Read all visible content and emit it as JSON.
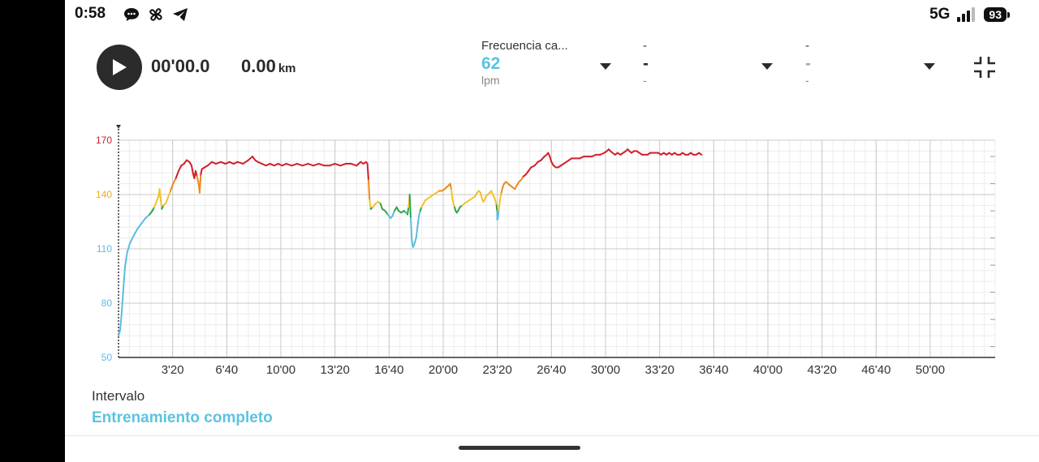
{
  "status_bar": {
    "time": "0:58",
    "network": "5G",
    "battery": "93"
  },
  "summary": {
    "duration": "00'00.0",
    "distance_value": "0.00",
    "distance_unit": "km"
  },
  "metrics": [
    {
      "label": "Frecuencia ca...",
      "value": "62",
      "unit": "lpm",
      "value_color": "#5bc3e0"
    },
    {
      "label": "-",
      "value": "-",
      "unit": "-",
      "value_color": "#2b2b2b"
    },
    {
      "label": "-",
      "value": "-",
      "unit": "-",
      "value_color": "#aaaaaa"
    }
  ],
  "interval": {
    "label": "Intervalo",
    "value": "Entrenamiento completo"
  },
  "colors": {
    "accent": "#5bc3e0",
    "zone_blue": "#5bbce0",
    "zone_green": "#2aa84a",
    "zone_yellow": "#f2c12e",
    "zone_orange": "#ec8a22",
    "zone_red": "#d0202a"
  },
  "chart_data": {
    "type": "line",
    "title": "Frecuencia cardíaca",
    "ylabel": "lpm",
    "xlabel": "",
    "ylim": [
      50,
      170
    ],
    "xlim_seconds": [
      0,
      3240
    ],
    "y_ticks": [
      {
        "value": 50,
        "label": "50",
        "color": "#5bbce0"
      },
      {
        "value": 80,
        "label": "80",
        "color": "#5bbce0"
      },
      {
        "value": 110,
        "label": "110",
        "color": "#5bbce0"
      },
      {
        "value": 140,
        "label": "140",
        "color": "#f2a81e"
      },
      {
        "value": 170,
        "label": "170",
        "color": "#d0202a"
      }
    ],
    "x_ticks": [
      {
        "seconds": 200,
        "label": "3'20"
      },
      {
        "seconds": 400,
        "label": "6'40"
      },
      {
        "seconds": 600,
        "label": "10'00"
      },
      {
        "seconds": 800,
        "label": "13'20"
      },
      {
        "seconds": 1000,
        "label": "16'40"
      },
      {
        "seconds": 1200,
        "label": "20'00"
      },
      {
        "seconds": 1400,
        "label": "23'20"
      },
      {
        "seconds": 1600,
        "label": "26'40"
      },
      {
        "seconds": 1800,
        "label": "30'00"
      },
      {
        "seconds": 2000,
        "label": "33'20"
      },
      {
        "seconds": 2200,
        "label": "36'40"
      },
      {
        "seconds": 2400,
        "label": "40'00"
      },
      {
        "seconds": 2600,
        "label": "43'20"
      },
      {
        "seconds": 2800,
        "label": "46'40"
      },
      {
        "seconds": 3000,
        "label": "50'00"
      }
    ],
    "zones": [
      {
        "min": 0,
        "max": 130,
        "color": "#5bbce0"
      },
      {
        "min": 130,
        "max": 134,
        "color": "#2aa84a"
      },
      {
        "min": 134,
        "max": 142,
        "color": "#f2c12e"
      },
      {
        "min": 142,
        "max": 150,
        "color": "#ec8a22"
      },
      {
        "min": 150,
        "max": 200,
        "color": "#d0202a"
      }
    ],
    "series": [
      {
        "name": "Frecuencia cardíaca",
        "points": [
          [
            0,
            62
          ],
          [
            6,
            65
          ],
          [
            12,
            75
          ],
          [
            18,
            88
          ],
          [
            24,
            100
          ],
          [
            32,
            108
          ],
          [
            42,
            113
          ],
          [
            55,
            117
          ],
          [
            70,
            121
          ],
          [
            85,
            124
          ],
          [
            100,
            127
          ],
          [
            115,
            129
          ],
          [
            125,
            131
          ],
          [
            132,
            133
          ],
          [
            140,
            136
          ],
          [
            148,
            139
          ],
          [
            152,
            143
          ],
          [
            156,
            137
          ],
          [
            160,
            132
          ],
          [
            166,
            134
          ],
          [
            174,
            135
          ],
          [
            182,
            138
          ],
          [
            192,
            142
          ],
          [
            202,
            146
          ],
          [
            212,
            149
          ],
          [
            222,
            153
          ],
          [
            232,
            156
          ],
          [
            242,
            157
          ],
          [
            252,
            159
          ],
          [
            262,
            158
          ],
          [
            270,
            156
          ],
          [
            275,
            152
          ],
          [
            280,
            149
          ],
          [
            285,
            153
          ],
          [
            290,
            150
          ],
          [
            295,
            147
          ],
          [
            300,
            141
          ],
          [
            304,
            151
          ],
          [
            308,
            154
          ],
          [
            318,
            155
          ],
          [
            330,
            156
          ],
          [
            345,
            158
          ],
          [
            360,
            157
          ],
          [
            378,
            158
          ],
          [
            395,
            157
          ],
          [
            410,
            158
          ],
          [
            425,
            157
          ],
          [
            440,
            158
          ],
          [
            460,
            157
          ],
          [
            480,
            159
          ],
          [
            495,
            161
          ],
          [
            505,
            159
          ],
          [
            515,
            158
          ],
          [
            530,
            157
          ],
          [
            545,
            156
          ],
          [
            560,
            157
          ],
          [
            575,
            156
          ],
          [
            590,
            157
          ],
          [
            605,
            156
          ],
          [
            620,
            157
          ],
          [
            640,
            156
          ],
          [
            660,
            157
          ],
          [
            680,
            156
          ],
          [
            700,
            157
          ],
          [
            720,
            156
          ],
          [
            740,
            157
          ],
          [
            760,
            156
          ],
          [
            780,
            156
          ],
          [
            800,
            157
          ],
          [
            820,
            156
          ],
          [
            840,
            157
          ],
          [
            860,
            157
          ],
          [
            880,
            156
          ],
          [
            895,
            158
          ],
          [
            905,
            157
          ],
          [
            915,
            158
          ],
          [
            920,
            157
          ],
          [
            924,
            148
          ],
          [
            928,
            137
          ],
          [
            932,
            132
          ],
          [
            940,
            133
          ],
          [
            950,
            135
          ],
          [
            960,
            136
          ],
          [
            968,
            135
          ],
          [
            975,
            132
          ],
          [
            985,
            131
          ],
          [
            995,
            129
          ],
          [
            1005,
            127
          ],
          [
            1012,
            128
          ],
          [
            1020,
            131
          ],
          [
            1028,
            133
          ],
          [
            1035,
            131
          ],
          [
            1045,
            130
          ],
          [
            1055,
            131
          ],
          [
            1062,
            130
          ],
          [
            1068,
            129
          ],
          [
            1072,
            133
          ],
          [
            1076,
            140
          ],
          [
            1080,
            127
          ],
          [
            1084,
            115
          ],
          [
            1088,
            111
          ],
          [
            1092,
            112
          ],
          [
            1096,
            114
          ],
          [
            1100,
            116
          ],
          [
            1105,
            122
          ],
          [
            1110,
            128
          ],
          [
            1115,
            131
          ],
          [
            1120,
            133
          ],
          [
            1127,
            135
          ],
          [
            1135,
            137
          ],
          [
            1145,
            138
          ],
          [
            1155,
            139
          ],
          [
            1165,
            140
          ],
          [
            1175,
            141
          ],
          [
            1185,
            142
          ],
          [
            1195,
            142
          ],
          [
            1205,
            143
          ],
          [
            1212,
            144
          ],
          [
            1220,
            145
          ],
          [
            1226,
            146
          ],
          [
            1230,
            143
          ],
          [
            1234,
            138
          ],
          [
            1238,
            135
          ],
          [
            1242,
            133
          ],
          [
            1246,
            131
          ],
          [
            1250,
            130
          ],
          [
            1255,
            131
          ],
          [
            1262,
            133
          ],
          [
            1270,
            134
          ],
          [
            1278,
            135
          ],
          [
            1288,
            136
          ],
          [
            1298,
            137
          ],
          [
            1308,
            138
          ],
          [
            1318,
            139
          ],
          [
            1325,
            141
          ],
          [
            1332,
            142
          ],
          [
            1338,
            141
          ],
          [
            1343,
            138
          ],
          [
            1348,
            136
          ],
          [
            1353,
            137
          ],
          [
            1358,
            139
          ],
          [
            1365,
            140
          ],
          [
            1372,
            141
          ],
          [
            1378,
            142
          ],
          [
            1384,
            140
          ],
          [
            1390,
            138
          ],
          [
            1394,
            136
          ],
          [
            1397,
            134
          ],
          [
            1399,
            131
          ],
          [
            1400,
            126
          ],
          [
            1402,
            127
          ],
          [
            1405,
            131
          ],
          [
            1410,
            137
          ],
          [
            1415,
            141
          ],
          [
            1420,
            144
          ],
          [
            1425,
            146
          ],
          [
            1432,
            147
          ],
          [
            1440,
            146
          ],
          [
            1448,
            145
          ],
          [
            1456,
            144
          ],
          [
            1465,
            143
          ],
          [
            1472,
            145
          ],
          [
            1480,
            147
          ],
          [
            1488,
            148
          ],
          [
            1496,
            150
          ],
          [
            1505,
            151
          ],
          [
            1515,
            153
          ],
          [
            1525,
            155
          ],
          [
            1538,
            156
          ],
          [
            1550,
            158
          ],
          [
            1562,
            159
          ],
          [
            1574,
            161
          ],
          [
            1582,
            162
          ],
          [
            1588,
            163
          ],
          [
            1594,
            161
          ],
          [
            1600,
            158
          ],
          [
            1608,
            156
          ],
          [
            1616,
            155
          ],
          [
            1625,
            155
          ],
          [
            1635,
            156
          ],
          [
            1645,
            157
          ],
          [
            1655,
            158
          ],
          [
            1665,
            159
          ],
          [
            1675,
            160
          ],
          [
            1690,
            160
          ],
          [
            1705,
            160
          ],
          [
            1720,
            161
          ],
          [
            1735,
            161
          ],
          [
            1750,
            161
          ],
          [
            1765,
            162
          ],
          [
            1780,
            162
          ],
          [
            1795,
            163
          ],
          [
            1805,
            164
          ],
          [
            1812,
            165
          ],
          [
            1818,
            164
          ],
          [
            1826,
            163
          ],
          [
            1835,
            162
          ],
          [
            1845,
            163
          ],
          [
            1855,
            162
          ],
          [
            1865,
            163
          ],
          [
            1875,
            164
          ],
          [
            1882,
            165
          ],
          [
            1888,
            164
          ],
          [
            1896,
            163
          ],
          [
            1905,
            164
          ],
          [
            1915,
            164
          ],
          [
            1925,
            163
          ],
          [
            1935,
            162
          ],
          [
            1945,
            162
          ],
          [
            1955,
            162
          ],
          [
            1965,
            163
          ],
          [
            1975,
            163
          ],
          [
            1985,
            163
          ],
          [
            1995,
            163
          ],
          [
            2005,
            162
          ],
          [
            2015,
            163
          ],
          [
            2025,
            162
          ],
          [
            2035,
            163
          ],
          [
            2045,
            162
          ],
          [
            2055,
            163
          ],
          [
            2065,
            162
          ],
          [
            2075,
            162
          ],
          [
            2085,
            163
          ],
          [
            2095,
            162
          ],
          [
            2105,
            162
          ],
          [
            2115,
            163
          ],
          [
            2125,
            162
          ],
          [
            2135,
            162
          ],
          [
            2145,
            163
          ],
          [
            2155,
            162
          ]
        ]
      }
    ]
  }
}
